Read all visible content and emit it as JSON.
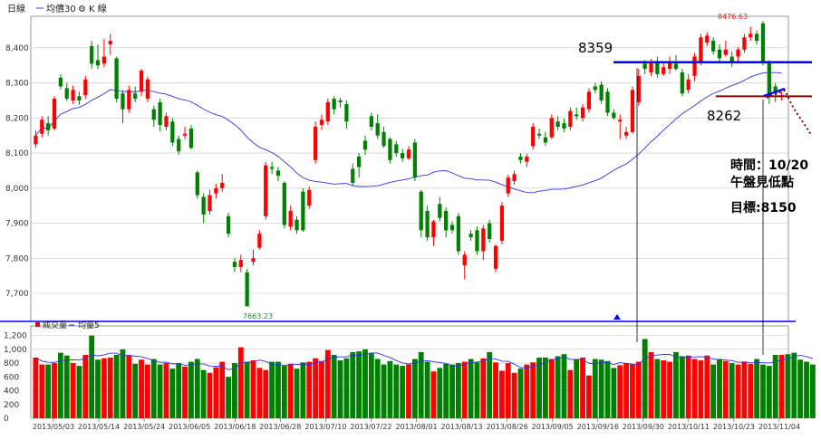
{
  "header": {
    "title": "日線",
    "legend_ma": "均價30",
    "legend_gear": "⚙",
    "legend_k": "K 線",
    "volume_label": "成交量",
    "volume_ma": "均量5"
  },
  "colors": {
    "up": "#ff0000",
    "down": "#008000",
    "ma_line": "#3333dd",
    "blue_line": "#0000ff",
    "brown_line": "#8b0000",
    "grid": "#c8c8c8"
  },
  "annotations": {
    "level_high": "8359",
    "level_low": "8262",
    "note_line1": "時間：10/20",
    "note_line2": "午盤見低點",
    "note_line3": "目標:8150",
    "high_label": "8476.63",
    "low_label": "7663.23"
  },
  "chart_data": [
    {
      "type": "candlestick",
      "yticks": [
        7700,
        7800,
        7900,
        8000,
        8100,
        8200,
        8300,
        8400
      ],
      "ylim": [
        7620,
        8490
      ],
      "moving_average": "均價30",
      "horizontal_levels": [
        8359,
        8262
      ],
      "marked_high": 8476.63,
      "marked_low": 7663.23,
      "candles": [
        {
          "o": 8125,
          "c": 8150,
          "h": 8165,
          "l": 8115
        },
        {
          "o": 8155,
          "c": 8195,
          "h": 8205,
          "l": 8145
        },
        {
          "o": 8185,
          "c": 8165,
          "h": 8205,
          "l": 8150
        },
        {
          "o": 8170,
          "c": 8255,
          "h": 8262,
          "l": 8165
        },
        {
          "o": 8315,
          "c": 8290,
          "h": 8325,
          "l": 8282
        },
        {
          "o": 8285,
          "c": 8255,
          "h": 8300,
          "l": 8248
        },
        {
          "o": 8250,
          "c": 8280,
          "h": 8292,
          "l": 8240
        },
        {
          "o": 8262,
          "c": 8250,
          "h": 8275,
          "l": 8238
        },
        {
          "o": 8265,
          "c": 8310,
          "h": 8320,
          "l": 8255
        },
        {
          "o": 8405,
          "c": 8355,
          "h": 8420,
          "l": 8340
        },
        {
          "o": 8365,
          "c": 8350,
          "h": 8410,
          "l": 8340
        },
        {
          "o": 8355,
          "c": 8375,
          "h": 8425,
          "l": 8345
        },
        {
          "o": 8410,
          "c": 8420,
          "h": 8440,
          "l": 8380
        },
        {
          "o": 8370,
          "c": 8255,
          "h": 8375,
          "l": 8245
        },
        {
          "o": 8270,
          "c": 8225,
          "h": 8280,
          "l": 8185
        },
        {
          "o": 8225,
          "c": 8280,
          "h": 8292,
          "l": 8215
        },
        {
          "o": 8270,
          "c": 8255,
          "h": 8290,
          "l": 8245
        },
        {
          "o": 8275,
          "c": 8335,
          "h": 8340,
          "l": 8262
        },
        {
          "o": 8255,
          "c": 8310,
          "h": 8318,
          "l": 8245
        },
        {
          "o": 8225,
          "c": 8195,
          "h": 8235,
          "l": 8175
        },
        {
          "o": 8245,
          "c": 8180,
          "h": 8255,
          "l": 8162
        },
        {
          "o": 8175,
          "c": 8205,
          "h": 8215,
          "l": 8165
        },
        {
          "o": 8190,
          "c": 8130,
          "h": 8200,
          "l": 8120
        },
        {
          "o": 8140,
          "c": 8105,
          "h": 8150,
          "l": 8095
        },
        {
          "o": 8150,
          "c": 8155,
          "h": 8175,
          "l": 8140
        },
        {
          "o": 8170,
          "c": 8115,
          "h": 8180,
          "l": 8110
        },
        {
          "o": 8045,
          "c": 7980,
          "h": 8050,
          "l": 7970
        },
        {
          "o": 7975,
          "c": 7925,
          "h": 7985,
          "l": 7900
        },
        {
          "o": 7935,
          "c": 7980,
          "h": 7995,
          "l": 7925
        },
        {
          "o": 7985,
          "c": 8000,
          "h": 8012,
          "l": 7970
        },
        {
          "o": 8000,
          "c": 8015,
          "h": 8040,
          "l": 7990
        },
        {
          "o": 7920,
          "c": 7870,
          "h": 7930,
          "l": 7860
        },
        {
          "o": 7790,
          "c": 7775,
          "h": 7800,
          "l": 7760
        },
        {
          "o": 7775,
          "c": 7795,
          "h": 7810,
          "l": 7760
        },
        {
          "o": 7760,
          "c": 7663,
          "h": 7770,
          "l": 7663
        },
        {
          "o": 7790,
          "c": 7800,
          "h": 7825,
          "l": 7780
        },
        {
          "o": 7830,
          "c": 7870,
          "h": 7880,
          "l": 7825
        },
        {
          "o": 7920,
          "c": 8065,
          "h": 8075,
          "l": 7910
        },
        {
          "o": 8060,
          "c": 8055,
          "h": 8075,
          "l": 8040
        },
        {
          "o": 8050,
          "c": 8035,
          "h": 8060,
          "l": 8020
        },
        {
          "o": 8015,
          "c": 7895,
          "h": 8020,
          "l": 7885
        },
        {
          "o": 7890,
          "c": 7935,
          "h": 7950,
          "l": 7880
        },
        {
          "o": 7910,
          "c": 7880,
          "h": 7920,
          "l": 7870
        },
        {
          "o": 7990,
          "c": 7880,
          "h": 8000,
          "l": 7875
        },
        {
          "o": 7950,
          "c": 7995,
          "h": 8005,
          "l": 7940
        },
        {
          "o": 8080,
          "c": 8175,
          "h": 8190,
          "l": 8070
        },
        {
          "o": 8180,
          "c": 8195,
          "h": 8210,
          "l": 8165
        },
        {
          "o": 8190,
          "c": 8245,
          "h": 8255,
          "l": 8180
        },
        {
          "o": 8255,
          "c": 8225,
          "h": 8262,
          "l": 8210
        },
        {
          "o": 8250,
          "c": 8245,
          "h": 8258,
          "l": 8230
        },
        {
          "o": 8240,
          "c": 8190,
          "h": 8250,
          "l": 8170
        },
        {
          "o": 8055,
          "c": 8015,
          "h": 8070,
          "l": 8005
        },
        {
          "o": 8090,
          "c": 8060,
          "h": 8100,
          "l": 8030
        },
        {
          "o": 8135,
          "c": 8110,
          "h": 8150,
          "l": 8095
        },
        {
          "o": 8205,
          "c": 8175,
          "h": 8215,
          "l": 8165
        },
        {
          "o": 8185,
          "c": 8150,
          "h": 8210,
          "l": 8140
        },
        {
          "o": 8160,
          "c": 8120,
          "h": 8175,
          "l": 8115
        },
        {
          "o": 8140,
          "c": 8080,
          "h": 8145,
          "l": 8070
        },
        {
          "o": 8125,
          "c": 8100,
          "h": 8135,
          "l": 8090
        },
        {
          "o": 8100,
          "c": 8085,
          "h": 8112,
          "l": 8075
        },
        {
          "o": 8085,
          "c": 8110,
          "h": 8120,
          "l": 8080
        },
        {
          "o": 8130,
          "c": 8030,
          "h": 8140,
          "l": 8020
        },
        {
          "o": 7990,
          "c": 7880,
          "h": 7995,
          "l": 7860
        },
        {
          "o": 7935,
          "c": 7860,
          "h": 7950,
          "l": 7850
        },
        {
          "o": 7860,
          "c": 7905,
          "h": 7910,
          "l": 7835
        },
        {
          "o": 7955,
          "c": 7915,
          "h": 7975,
          "l": 7905
        },
        {
          "o": 7935,
          "c": 7880,
          "h": 7945,
          "l": 7860
        },
        {
          "o": 7895,
          "c": 7880,
          "h": 7905,
          "l": 7870
        },
        {
          "o": 7920,
          "c": 7820,
          "h": 7930,
          "l": 7810
        },
        {
          "o": 7780,
          "c": 7810,
          "h": 7820,
          "l": 7740
        },
        {
          "o": 7870,
          "c": 7860,
          "h": 7880,
          "l": 7850
        },
        {
          "o": 7880,
          "c": 7820,
          "h": 7890,
          "l": 7810
        },
        {
          "o": 7820,
          "c": 7885,
          "h": 7895,
          "l": 7795
        },
        {
          "o": 7900,
          "c": 7855,
          "h": 7910,
          "l": 7845
        },
        {
          "o": 7770,
          "c": 7835,
          "h": 7840,
          "l": 7760
        },
        {
          "o": 7850,
          "c": 7950,
          "h": 7960,
          "l": 7840
        },
        {
          "o": 7985,
          "c": 8030,
          "h": 8038,
          "l": 7975
        },
        {
          "o": 8020,
          "c": 8040,
          "h": 8050,
          "l": 8010
        },
        {
          "o": 8090,
          "c": 8080,
          "h": 8100,
          "l": 8070
        },
        {
          "o": 8075,
          "c": 8090,
          "h": 8098,
          "l": 8060
        },
        {
          "o": 8120,
          "c": 8175,
          "h": 8185,
          "l": 8110
        },
        {
          "o": 8155,
          "c": 8150,
          "h": 8170,
          "l": 8140
        },
        {
          "o": 8145,
          "c": 8130,
          "h": 8160,
          "l": 8120
        },
        {
          "o": 8145,
          "c": 8200,
          "h": 8210,
          "l": 8140
        },
        {
          "o": 8190,
          "c": 8175,
          "h": 8205,
          "l": 8165
        },
        {
          "o": 8185,
          "c": 8170,
          "h": 8198,
          "l": 8160
        },
        {
          "o": 8175,
          "c": 8220,
          "h": 8230,
          "l": 8165
        },
        {
          "o": 8210,
          "c": 8205,
          "h": 8230,
          "l": 8195
        },
        {
          "o": 8200,
          "c": 8230,
          "h": 8240,
          "l": 8190
        },
        {
          "o": 8225,
          "c": 8275,
          "h": 8285,
          "l": 8215
        },
        {
          "o": 8290,
          "c": 8280,
          "h": 8300,
          "l": 8270
        },
        {
          "o": 8295,
          "c": 8250,
          "h": 8305,
          "l": 8240
        },
        {
          "o": 8275,
          "c": 8215,
          "h": 8285,
          "l": 8205
        },
        {
          "o": 8215,
          "c": 8200,
          "h": 8225,
          "l": 8195
        },
        {
          "o": 8190,
          "c": 8195,
          "h": 8210,
          "l": 8140
        },
        {
          "o": 8150,
          "c": 8160,
          "h": 8175,
          "l": 8140
        },
        {
          "o": 8160,
          "c": 8280,
          "h": 8290,
          "l": 8155
        },
        {
          "o": 8245,
          "c": 8320,
          "h": 8340,
          "l": 8235
        },
        {
          "o": 8355,
          "c": 8340,
          "h": 8365,
          "l": 8325
        },
        {
          "o": 8330,
          "c": 8360,
          "h": 8368,
          "l": 8320
        },
        {
          "o": 8360,
          "c": 8325,
          "h": 8375,
          "l": 8315
        },
        {
          "o": 8325,
          "c": 8345,
          "h": 8360,
          "l": 8320
        },
        {
          "o": 8340,
          "c": 8360,
          "h": 8375,
          "l": 8325
        },
        {
          "o": 8355,
          "c": 8340,
          "h": 8380,
          "l": 8335
        },
        {
          "o": 8330,
          "c": 8270,
          "h": 8340,
          "l": 8262
        },
        {
          "o": 8280,
          "c": 8310,
          "h": 8325,
          "l": 8270
        },
        {
          "o": 8320,
          "c": 8375,
          "h": 8385,
          "l": 8305
        },
        {
          "o": 8360,
          "c": 8430,
          "h": 8440,
          "l": 8350
        },
        {
          "o": 8415,
          "c": 8435,
          "h": 8445,
          "l": 8405
        },
        {
          "o": 8420,
          "c": 8390,
          "h": 8430,
          "l": 8380
        },
        {
          "o": 8395,
          "c": 8370,
          "h": 8410,
          "l": 8360
        },
        {
          "o": 8380,
          "c": 8395,
          "h": 8420,
          "l": 8375
        },
        {
          "o": 8375,
          "c": 8360,
          "h": 8390,
          "l": 8345
        },
        {
          "o": 8375,
          "c": 8395,
          "h": 8402,
          "l": 8355
        },
        {
          "o": 8395,
          "c": 8430,
          "h": 8440,
          "l": 8385
        },
        {
          "o": 8430,
          "c": 8440,
          "h": 8460,
          "l": 8420
        },
        {
          "o": 8440,
          "c": 8420,
          "h": 8450,
          "l": 8410
        },
        {
          "o": 8470,
          "c": 8360,
          "h": 8476.63,
          "l": 8350
        },
        {
          "o": 8360,
          "c": 8262,
          "h": 8365,
          "l": 8240
        },
        {
          "o": 8290,
          "c": 8270,
          "h": 8300,
          "l": 8245
        },
        {
          "o": 8260,
          "c": 8265,
          "h": 8275,
          "l": 8250
        }
      ]
    },
    {
      "type": "bar",
      "yticks": [
        0,
        200,
        400,
        600,
        800,
        1000,
        1200
      ],
      "ylim": [
        0,
        1300
      ],
      "moving_average": "均量5",
      "values": [
        880,
        780,
        780,
        800,
        950,
        910,
        800,
        760,
        920,
        1200,
        850,
        870,
        880,
        920,
        1000,
        910,
        790,
        850,
        780,
        860,
        780,
        800,
        720,
        800,
        750,
        820,
        860,
        700,
        660,
        740,
        820,
        600,
        800,
        1030,
        820,
        840,
        730,
        700,
        820,
        820,
        760,
        790,
        720,
        810,
        820,
        870,
        830,
        990,
        920,
        840,
        870,
        960,
        970,
        1000,
        940,
        860,
        780,
        830,
        780,
        760,
        780,
        860,
        960,
        820,
        680,
        730,
        790,
        780,
        800,
        820,
        860,
        810,
        870,
        960,
        810,
        690,
        800,
        660,
        720,
        780,
        810,
        880,
        880,
        860,
        900,
        930,
        700,
        860,
        880,
        620,
        860,
        850,
        830,
        730,
        770,
        800,
        790,
        820,
        1150,
        960,
        860,
        840,
        820,
        960,
        900,
        910,
        860,
        840,
        910,
        780,
        860,
        830,
        800,
        780,
        820,
        790,
        860,
        780,
        760,
        920,
        920,
        930,
        950,
        850,
        820,
        780
      ],
      "xticks": [
        "2013/05/03",
        "2013/05/14",
        "2013/05/24",
        "2013/06/05",
        "2013/06/18",
        "2013/06/28",
        "2013/07/10",
        "2013/07/22",
        "2013/08/01",
        "2013/08/13",
        "2013/08/26",
        "2013/09/05",
        "2013/09/16",
        "2013/09/30",
        "2013/10/11",
        "2013/10/23",
        "2013/11/04"
      ]
    }
  ]
}
